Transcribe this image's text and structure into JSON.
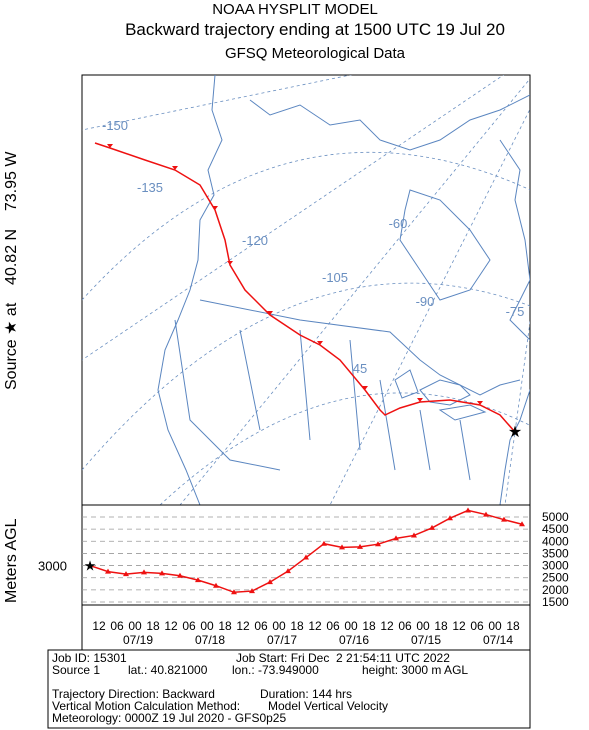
{
  "header": {
    "title": "NOAA HYSPLIT MODEL",
    "subtitle": "Backward trajectory ending at 1500 UTC 19 Jul 20",
    "meteo": "GFSQ Meteorological Data"
  },
  "side_label": "Source ★ at    40.82 N    73.95 W",
  "map": {
    "lon_labels": [
      "-150",
      "-135",
      "-120",
      "-105",
      "-90",
      "-75",
      "-60",
      "45"
    ]
  },
  "chart_data": {
    "type": "line",
    "ylabel": "Meters AGL",
    "start_label": 3000,
    "color": "#ee1111",
    "ylim": [
      1500,
      5000
    ],
    "yticks": [
      1500,
      2000,
      2500,
      3000,
      3500,
      4000,
      4500,
      5000
    ],
    "values": [
      3000,
      2750,
      2650,
      2720,
      2680,
      2580,
      2400,
      2170,
      1900,
      1950,
      2320,
      2770,
      3330,
      3900,
      3750,
      3770,
      3880,
      4120,
      4240,
      4550,
      4950,
      5270,
      5100,
      4890,
      4700
    ],
    "time_labels": [
      "12",
      "06",
      "00",
      "18",
      "12",
      "06",
      "00",
      "18",
      "12",
      "06",
      "00",
      "18",
      "12",
      "06",
      "00",
      "18",
      "12",
      "06",
      "00",
      "18",
      "12",
      "06",
      "00",
      "18"
    ],
    "date_labels": [
      "07/19",
      "07/18",
      "07/17",
      "07/16",
      "07/15",
      "07/14"
    ]
  },
  "footer": {
    "job_id": "Job ID: 15301",
    "job_start": "Job Start: Fri Dec  2 21:54:11 UTC 2022",
    "source": "Source 1",
    "lat": "lat.: 40.821000",
    "lon": "lon.: -73.949000",
    "height": "height: 3000 m AGL",
    "direction": "Trajectory Direction: Backward",
    "duration": "Duration: 144 hrs",
    "vmethod": "Vertical Motion Calculation Method:",
    "vmodel": "Model Vertical Velocity",
    "meteorology": "Meteorology: 0000Z 19 Jul 2020 - GFS0p25"
  }
}
